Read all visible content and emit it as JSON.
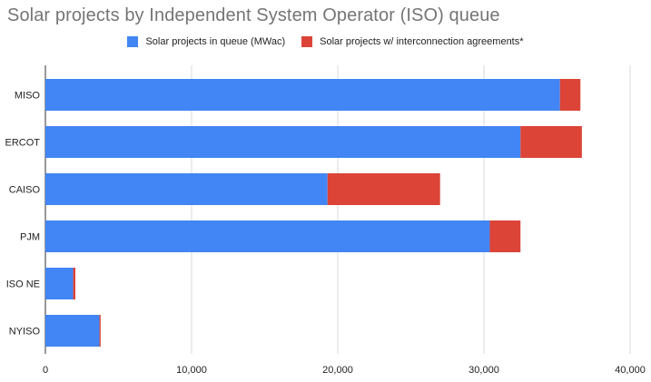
{
  "chart_data": {
    "type": "bar",
    "orientation": "horizontal",
    "stacked": true,
    "title": "Solar projects by Independent System Operator (ISO) queue",
    "categories": [
      "MISO",
      "ERCOT",
      "CAISO",
      "PJM",
      "ISO NE",
      "NYISO"
    ],
    "series": [
      {
        "name": "Solar projects in queue (MWac)",
        "color": "#4285f4",
        "values": [
          35200,
          32500,
          19300,
          30400,
          1900,
          3700
        ]
      },
      {
        "name": "Solar projects w/ interconnection agreements*",
        "color": "#db4437",
        "values": [
          1400,
          4200,
          7700,
          2100,
          150,
          80
        ]
      }
    ],
    "xlim": [
      0,
      40000
    ],
    "xticks": [
      "0",
      "10,000",
      "20,000",
      "30,000",
      "40,000"
    ],
    "xtick_values": [
      0,
      10000,
      20000,
      30000,
      40000
    ],
    "grid": "vertical",
    "legend_position": "top"
  }
}
